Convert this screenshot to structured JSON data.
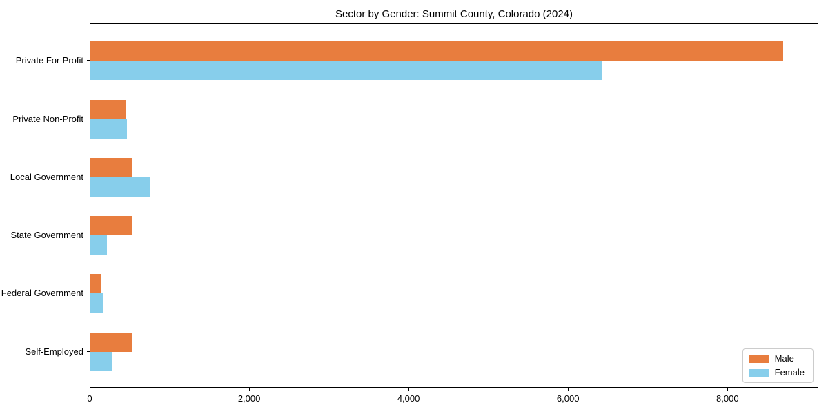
{
  "chart_data": {
    "type": "bar",
    "orientation": "horizontal",
    "title": "Sector by Gender: Summit County, Colorado (2024)",
    "categories": [
      "Private For-Profit",
      "Private Non-Profit",
      "Local Government",
      "State Government",
      "Federal Government",
      "Self-Employed"
    ],
    "series": [
      {
        "name": "Male",
        "color": "#e87d3e",
        "values": [
          8690,
          450,
          525,
          515,
          135,
          530
        ]
      },
      {
        "name": "Female",
        "color": "#87ceeb",
        "values": [
          6410,
          458,
          755,
          205,
          160,
          265
        ]
      }
    ],
    "xlabel": "",
    "ylabel": "",
    "xlim": [
      0,
      9140
    ],
    "xticks": [
      0,
      2000,
      4000,
      6000,
      8000
    ],
    "xtick_labels": [
      "0",
      "2,000",
      "4,000",
      "6,000",
      "8,000"
    ],
    "grid": false,
    "legend_position": "lower right",
    "colors": {
      "background": "#ffffff",
      "spine": "#000000",
      "text": "#000000",
      "legend_border": "#cccccc"
    }
  }
}
